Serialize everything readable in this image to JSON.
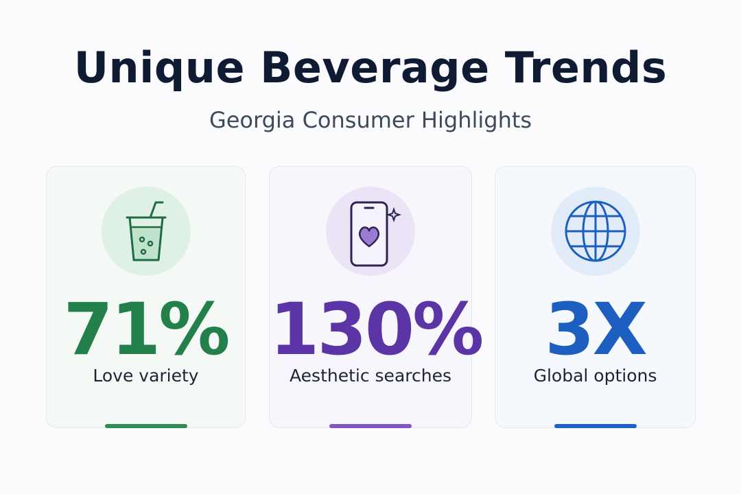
{
  "header": {
    "title": "Unique Beverage Trends",
    "subtitle": "Georgia Consumer Highlights"
  },
  "cards": [
    {
      "stat": "71%",
      "label": "Love variety"
    },
    {
      "stat": "130%",
      "label": "Aesthetic searches"
    },
    {
      "stat": "3X",
      "label": "Global options"
    }
  ]
}
